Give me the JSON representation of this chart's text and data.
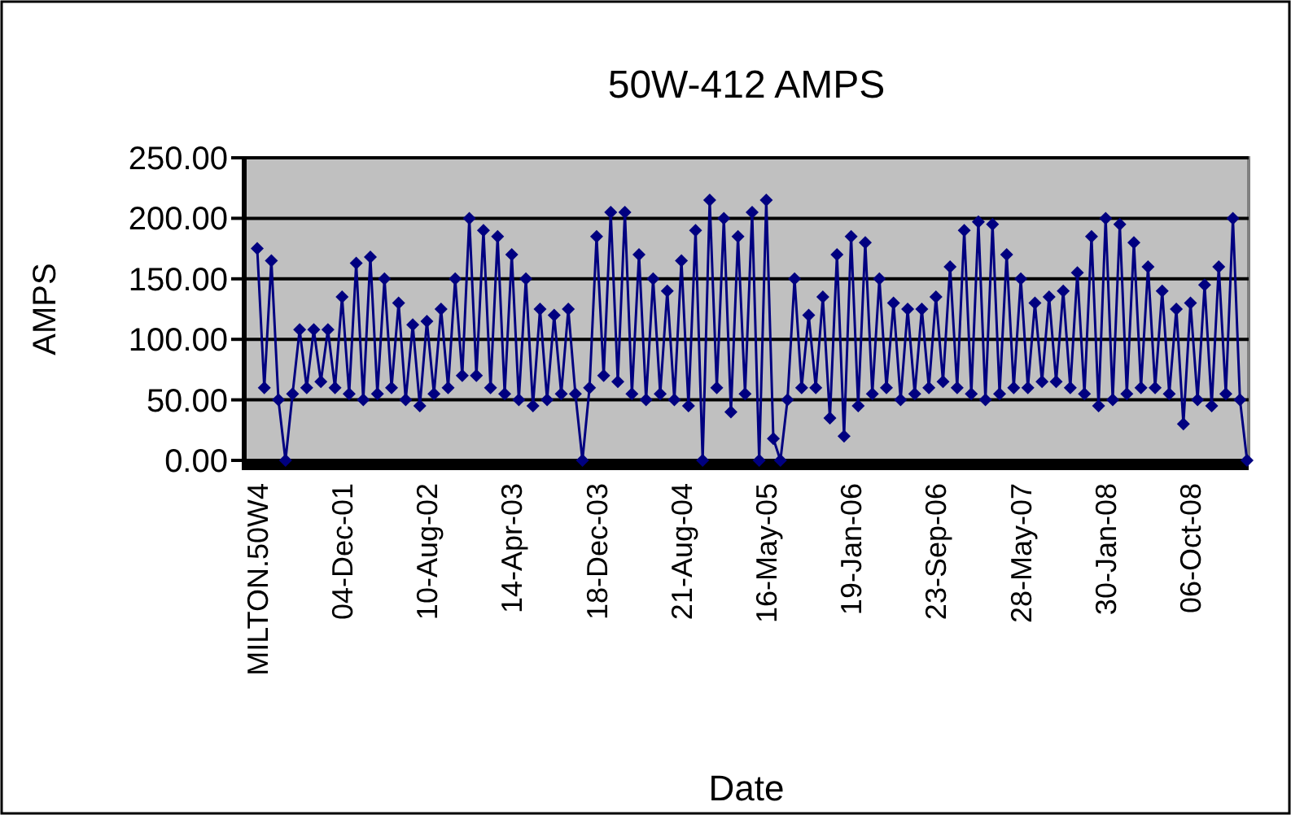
{
  "chart_data": {
    "type": "line",
    "title": "50W-412 AMPS",
    "xlabel": "Date",
    "ylabel": "AMPS",
    "categories": [
      "MILTON.50W4",
      null,
      null,
      null,
      null,
      null,
      null,
      null,
      null,
      null,
      null,
      null,
      "04-Dec-01",
      null,
      null,
      null,
      null,
      null,
      null,
      null,
      null,
      null,
      null,
      null,
      "10-Aug-02",
      null,
      null,
      null,
      null,
      null,
      null,
      null,
      null,
      null,
      null,
      null,
      "14-Apr-03",
      null,
      null,
      null,
      null,
      null,
      null,
      null,
      null,
      null,
      null,
      null,
      "18-Dec-03",
      null,
      null,
      null,
      null,
      null,
      null,
      null,
      null,
      null,
      null,
      null,
      "21-Aug-04",
      null,
      null,
      null,
      null,
      null,
      null,
      null,
      null,
      null,
      null,
      null,
      "16-May-05",
      null,
      null,
      null,
      null,
      null,
      null,
      null,
      null,
      null,
      null,
      null,
      "19-Jan-06",
      null,
      null,
      null,
      null,
      null,
      null,
      null,
      null,
      null,
      null,
      null,
      "23-Sep-06",
      null,
      null,
      null,
      null,
      null,
      null,
      null,
      null,
      null,
      null,
      null,
      "28-May-07",
      null,
      null,
      null,
      null,
      null,
      null,
      null,
      null,
      null,
      null,
      null,
      "30-Jan-08",
      null,
      null,
      null,
      null,
      null,
      null,
      null,
      null,
      null,
      null,
      null,
      "06-Oct-08",
      null,
      null,
      null,
      null,
      null,
      null,
      null,
      null
    ],
    "series": [
      {
        "color": "#000080",
        "values": [
          175,
          60,
          165,
          50,
          0,
          55,
          108,
          60,
          108,
          65,
          108,
          60,
          135,
          55,
          163,
          50,
          168,
          55,
          150,
          60,
          130,
          50,
          112,
          45,
          115,
          55,
          125,
          60,
          150,
          70,
          200,
          70,
          190,
          60,
          185,
          55,
          170,
          50,
          150,
          45,
          125,
          50,
          120,
          55,
          125,
          55,
          0,
          60,
          185,
          70,
          205,
          65,
          205,
          55,
          170,
          50,
          150,
          55,
          140,
          50,
          165,
          45,
          190,
          0,
          215,
          60,
          200,
          40,
          185,
          55,
          205,
          0,
          215,
          18,
          0,
          50,
          150,
          60,
          120,
          60,
          135,
          35,
          170,
          20,
          185,
          45,
          180,
          55,
          150,
          60,
          130,
          50,
          125,
          55,
          125,
          60,
          135,
          65,
          160,
          60,
          190,
          55,
          197,
          50,
          195,
          55,
          170,
          60,
          150,
          60,
          130,
          65,
          135,
          65,
          140,
          60,
          155,
          55,
          185,
          45,
          200,
          50,
          195,
          55,
          180,
          60,
          160,
          60,
          140,
          55,
          125,
          30,
          130,
          50,
          145,
          45,
          160,
          55,
          200,
          50,
          0
        ]
      }
    ],
    "ylim": [
      0,
      250
    ],
    "yticks": [
      {
        "value": 0,
        "label": "0.00"
      },
      {
        "value": 50,
        "label": "50.00"
      },
      {
        "value": 100,
        "label": "100.00"
      },
      {
        "value": 150,
        "label": "150.00"
      },
      {
        "value": 200,
        "label": "200.00"
      },
      {
        "value": 250,
        "label": "250.00"
      }
    ],
    "grid": "y",
    "marker": "diamond",
    "line_style": "solid"
  }
}
